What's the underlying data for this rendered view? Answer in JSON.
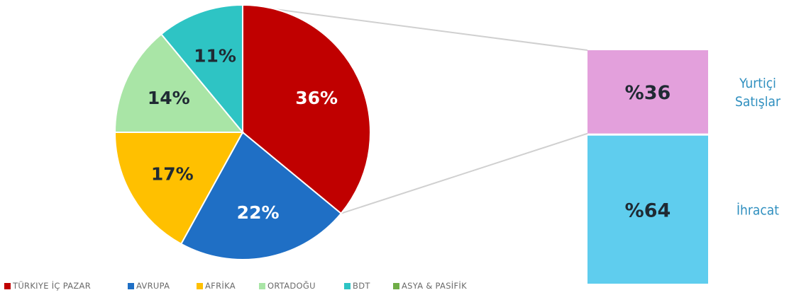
{
  "chart_data": [
    {
      "type": "pie",
      "slices": [
        {
          "label": "TÜRKIYE İÇ PAZAR",
          "value": 36,
          "text": "36%",
          "color": "#c00000",
          "label_color": "#ffffff"
        },
        {
          "label": "AVRUPA",
          "value": 22,
          "text": "22%",
          "color": "#1f6fc5",
          "label_color": "#ffffff"
        },
        {
          "label": "AFRİKA",
          "value": 17,
          "text": "17%",
          "color": "#ffc000",
          "label_color": "#1f2a33"
        },
        {
          "label": "ORTADOĞU",
          "value": 14,
          "text": "14%",
          "color": "#a9e5a6",
          "label_color": "#1f2a33"
        },
        {
          "label": "BDT",
          "value": 11,
          "text": "11%",
          "color": "#2ec4c4",
          "label_color": "#1f2a33"
        },
        {
          "label": "ASYA & PASİFİK",
          "value": 0,
          "text": "",
          "color": "#70ad47",
          "label_color": "#1f2a33"
        }
      ],
      "legend_position": "bottom-left"
    },
    {
      "type": "bar",
      "stacked": true,
      "segments": [
        {
          "name": "Yurtiçi Satışlar",
          "name_lines": [
            "Yurtiçi",
            "Satışlar"
          ],
          "value": 36,
          "text": "%36",
          "color": "#e3a0dc"
        },
        {
          "name": "İhracat",
          "name_lines": [
            "İhracat"
          ],
          "value": 64,
          "text": "%64",
          "color": "#5fcdee"
        }
      ]
    }
  ]
}
